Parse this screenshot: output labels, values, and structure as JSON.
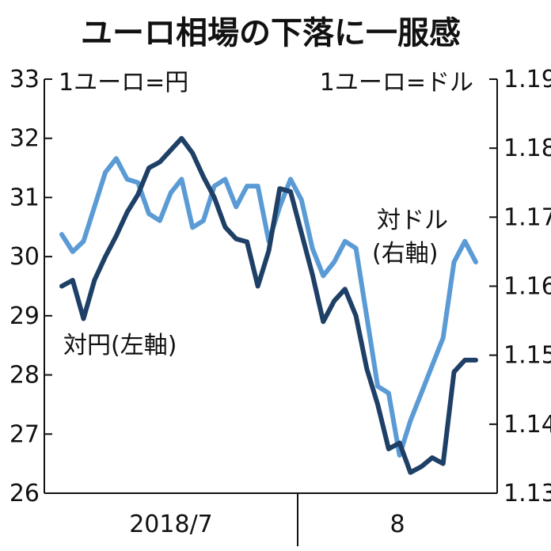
{
  "chart_data": {
    "type": "line",
    "title": "ユーロ相場の下落に一服感",
    "y_left": {
      "unit_label": "1ユーロ=円",
      "ylim": [
        26,
        33
      ],
      "ticks": [
        "33",
        "32",
        "31",
        "30",
        "29",
        "28",
        "27",
        "26"
      ]
    },
    "y_right": {
      "unit_label": "1ユーロ=ドル",
      "ylim": [
        1.13,
        1.19
      ],
      "ticks": [
        "1.19",
        "1.18",
        "1.17",
        "1.16",
        "1.15",
        "1.14",
        "1.13"
      ]
    },
    "x_labels": [
      "2018/7",
      "8"
    ],
    "series": [
      {
        "name": "対円(左軸)",
        "axis": "left",
        "color": "#1e3f66",
        "values": [
          29.5,
          29.6,
          28.95,
          29.6,
          30.0,
          30.35,
          30.75,
          31.05,
          31.5,
          31.6,
          31.8,
          32.0,
          31.75,
          31.35,
          31.0,
          30.5,
          30.3,
          30.25,
          29.5,
          30.1,
          31.15,
          31.1,
          30.4,
          29.7,
          28.9,
          29.25,
          29.45,
          29.0,
          28.1,
          27.5,
          26.75,
          26.85,
          26.35,
          26.45,
          26.6,
          26.5,
          28.05,
          28.25,
          28.25
        ]
      },
      {
        "name": "対ドル(右軸)",
        "axis": "right",
        "color": "#5b9bd5",
        "values": [
          1.1675,
          1.165,
          1.1665,
          1.1715,
          1.1765,
          1.1785,
          1.1755,
          1.175,
          1.1705,
          1.1695,
          1.1735,
          1.1755,
          1.1685,
          1.1695,
          1.1745,
          1.1755,
          1.1715,
          1.1745,
          1.1745,
          1.1665,
          1.1715,
          1.1755,
          1.1725,
          1.1655,
          1.1615,
          1.1635,
          1.1665,
          1.1655,
          1.1555,
          1.1455,
          1.1445,
          1.1355,
          1.1405,
          1.1445,
          1.1485,
          1.1525,
          1.1635,
          1.1665,
          1.1635
        ]
      }
    ],
    "annotations": [
      "対ドル",
      "(右軸)",
      "対円(左軸)"
    ],
    "grid": false
  }
}
